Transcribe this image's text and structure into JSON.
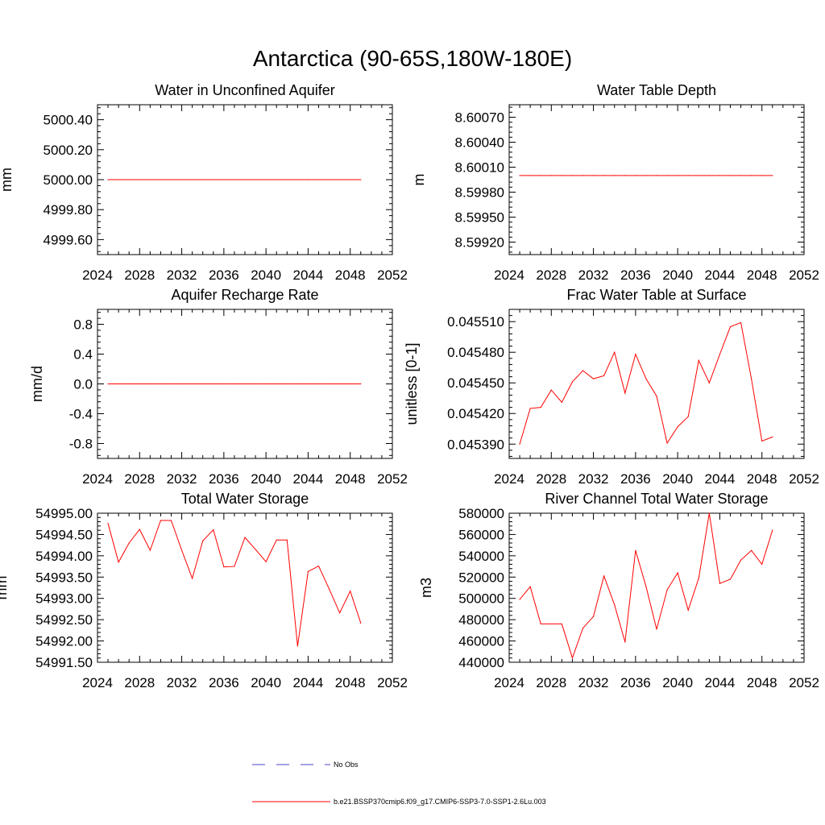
{
  "figure_title": "Antarctica (90-65S,180W-180E)",
  "colors": {
    "model": "#ff0000",
    "obs": "#4444cc",
    "axis": "#000000",
    "background": "#ffffff"
  },
  "legend": {
    "placement": "bottom-center",
    "entries": [
      {
        "label": "No Obs",
        "style": "dashed",
        "color": "#4444cc"
      },
      {
        "label": "b.e21.BSSP370cmip6.f09_g17.CMIP6-SSP3-7.0-SSP1-2.6Lu.003",
        "style": "solid",
        "color": "#ff0000"
      }
    ]
  },
  "chart_data": [
    {
      "type": "line",
      "title": "Water in Unconfined Aquifer",
      "xlabel": "",
      "ylabel": "mm",
      "xlim": [
        2024,
        2052
      ],
      "ylim": [
        4999.5,
        5000.5
      ],
      "xticks": [
        2024,
        2028,
        2032,
        2036,
        2040,
        2044,
        2048,
        2052
      ],
      "yticks": [
        4999.6,
        4999.8,
        5000.0,
        5000.2,
        5000.4
      ],
      "ytick_labels": [
        "4999.60",
        "4999.80",
        "5000.00",
        "5000.20",
        "5000.40"
      ],
      "series": [
        {
          "x": [
            2025,
            2026,
            2027,
            2028,
            2029,
            2030,
            2031,
            2032,
            2033,
            2034,
            2035,
            2036,
            2037,
            2038,
            2039,
            2040,
            2041,
            2042,
            2043,
            2044,
            2045,
            2046,
            2047,
            2048,
            2049
          ],
          "values": [
            5000,
            5000,
            5000,
            5000,
            5000,
            5000,
            5000,
            5000,
            5000,
            5000,
            5000,
            5000,
            5000,
            5000,
            5000,
            5000,
            5000,
            5000,
            5000,
            5000,
            5000,
            5000,
            5000,
            5000,
            5000
          ]
        }
      ]
    },
    {
      "type": "line",
      "title": "Water Table Depth",
      "xlabel": "",
      "ylabel": "m",
      "xlim": [
        2024,
        2052
      ],
      "ylim": [
        8.59905,
        8.60085
      ],
      "xticks": [
        2024,
        2028,
        2032,
        2036,
        2040,
        2044,
        2048,
        2052
      ],
      "yticks": [
        8.5992,
        8.5995,
        8.5998,
        8.6001,
        8.6004,
        8.6007
      ],
      "ytick_labels": [
        "8.59920",
        "8.59950",
        "8.59980",
        "8.60010",
        "8.60040",
        "8.60070"
      ],
      "series": [
        {
          "x": [
            2025,
            2026,
            2027,
            2028,
            2029,
            2030,
            2031,
            2032,
            2033,
            2034,
            2035,
            2036,
            2037,
            2038,
            2039,
            2040,
            2041,
            2042,
            2043,
            2044,
            2045,
            2046,
            2047,
            2048,
            2049
          ],
          "values": [
            8.6,
            8.6,
            8.6,
            8.6,
            8.6,
            8.6,
            8.6,
            8.6,
            8.6,
            8.6,
            8.6,
            8.6,
            8.6,
            8.6,
            8.6,
            8.6,
            8.6,
            8.6,
            8.6,
            8.6,
            8.6,
            8.6,
            8.6,
            8.6,
            8.6
          ]
        }
      ]
    },
    {
      "type": "line",
      "title": "Aquifer Recharge Rate",
      "xlabel": "",
      "ylabel": "mm/d",
      "xlim": [
        2024,
        2052
      ],
      "ylim": [
        -1.0,
        1.0
      ],
      "xticks": [
        2024,
        2028,
        2032,
        2036,
        2040,
        2044,
        2048,
        2052
      ],
      "yticks": [
        -0.8,
        -0.4,
        0.0,
        0.4,
        0.8
      ],
      "ytick_labels": [
        "-0.8",
        "-0.4",
        "0.0",
        "0.4",
        "0.8"
      ],
      "series": [
        {
          "x": [
            2025,
            2026,
            2027,
            2028,
            2029,
            2030,
            2031,
            2032,
            2033,
            2034,
            2035,
            2036,
            2037,
            2038,
            2039,
            2040,
            2041,
            2042,
            2043,
            2044,
            2045,
            2046,
            2047,
            2048,
            2049
          ],
          "values": [
            0,
            0,
            0,
            0,
            0,
            0,
            0,
            0,
            0,
            0,
            0,
            0,
            0,
            0,
            0,
            0,
            0,
            0,
            0,
            0,
            0,
            0,
            0,
            0,
            0
          ]
        }
      ]
    },
    {
      "type": "line",
      "title": "Frac Water Table at Surface",
      "xlabel": "",
      "ylabel": "unitless [0-1]",
      "xlim": [
        2024,
        2052
      ],
      "ylim": [
        0.045376,
        0.045522
      ],
      "xticks": [
        2024,
        2028,
        2032,
        2036,
        2040,
        2044,
        2048,
        2052
      ],
      "yticks": [
        0.04539,
        0.04542,
        0.04545,
        0.04548,
        0.04551
      ],
      "ytick_labels": [
        "0.045390",
        "0.045420",
        "0.045450",
        "0.045480",
        "0.045510"
      ],
      "series": [
        {
          "x": [
            2025,
            2026,
            2027,
            2028,
            2029,
            2030,
            2031,
            2032,
            2033,
            2034,
            2035,
            2036,
            2037,
            2038,
            2039,
            2040,
            2041,
            2042,
            2043,
            2044,
            2045,
            2046,
            2047,
            2048,
            2049
          ],
          "values": [
            0.04539,
            0.045425,
            0.045426,
            0.045443,
            0.045431,
            0.045451,
            0.045462,
            0.045454,
            0.045457,
            0.04548,
            0.04544,
            0.045478,
            0.045454,
            0.045437,
            0.045391,
            0.045407,
            0.045417,
            0.045472,
            0.04545,
            0.045478,
            0.045505,
            0.045509,
            0.045454,
            0.045393,
            0.045397
          ]
        }
      ]
    },
    {
      "type": "line",
      "title": "Total Water Storage",
      "xlabel": "",
      "ylabel": "mm",
      "xlim": [
        2024,
        2052
      ],
      "ylim": [
        54991.5,
        54995.0
      ],
      "xticks": [
        2024,
        2028,
        2032,
        2036,
        2040,
        2044,
        2048,
        2052
      ],
      "yticks": [
        54991.5,
        54992.0,
        54992.5,
        54993.0,
        54993.5,
        54994.0,
        54994.5,
        54995.0
      ],
      "ytick_labels": [
        "54991.50",
        "54992.00",
        "54992.50",
        "54993.00",
        "54993.50",
        "54994.00",
        "54994.50",
        "54995.00"
      ],
      "series": [
        {
          "x": [
            2025,
            2026,
            2027,
            2028,
            2029,
            2030,
            2031,
            2032,
            2033,
            2034,
            2035,
            2036,
            2037,
            2038,
            2039,
            2040,
            2041,
            2042,
            2043,
            2044,
            2045,
            2046,
            2047,
            2048,
            2049
          ],
          "values": [
            54994.76,
            54993.85,
            54994.3,
            54994.62,
            54994.13,
            54994.83,
            54994.83,
            54994.13,
            54993.47,
            54994.35,
            54994.61,
            54993.74,
            54993.75,
            54994.43,
            54994.15,
            54993.86,
            54994.37,
            54994.37,
            54991.88,
            54993.63,
            54993.76,
            54993.22,
            54992.66,
            54993.17,
            54992.42
          ]
        }
      ]
    },
    {
      "type": "line",
      "title": "River Channel Total Water Storage",
      "xlabel": "",
      "ylabel": "m3",
      "xlim": [
        2024,
        2052
      ],
      "ylim": [
        440000,
        580000
      ],
      "xticks": [
        2024,
        2028,
        2032,
        2036,
        2040,
        2044,
        2048,
        2052
      ],
      "yticks": [
        440000,
        460000,
        480000,
        500000,
        520000,
        540000,
        560000,
        580000
      ],
      "ytick_labels": [
        "440000",
        "460000",
        "480000",
        "500000",
        "520000",
        "540000",
        "560000",
        "580000"
      ],
      "series": [
        {
          "x": [
            2025,
            2026,
            2027,
            2028,
            2029,
            2030,
            2031,
            2032,
            2033,
            2034,
            2035,
            2036,
            2037,
            2038,
            2039,
            2040,
            2041,
            2042,
            2043,
            2044,
            2045,
            2046,
            2047,
            2048,
            2049
          ],
          "values": [
            499000,
            511000,
            476000,
            476000,
            476000,
            444000,
            472000,
            483000,
            521000,
            494000,
            459000,
            545000,
            511000,
            471000,
            508000,
            524000,
            489000,
            519000,
            580000,
            514000,
            518000,
            536000,
            545000,
            532000,
            564000
          ]
        }
      ]
    }
  ]
}
